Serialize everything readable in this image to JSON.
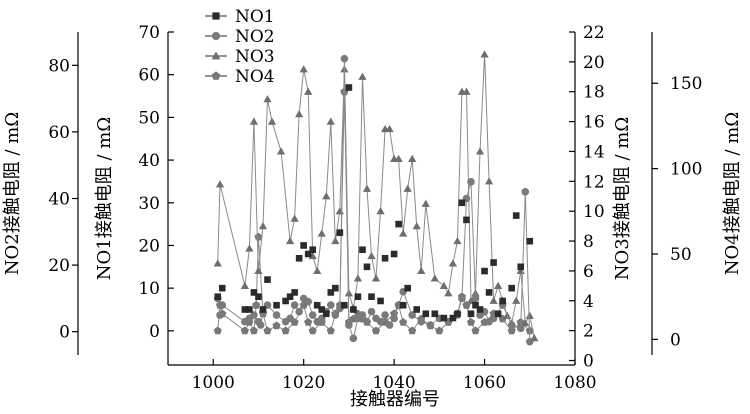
{
  "chart_data": {
    "type": "scatter",
    "xlabel": "接触器编号",
    "xlim": [
      990,
      1080
    ],
    "xticks": [
      1000,
      1020,
      1040,
      1060,
      1080
    ],
    "legend_position": "top-left",
    "grid": false,
    "axes": {
      "NO1": {
        "label": "NO1接触电阻 / mΩ",
        "lim": [
          -8,
          70
        ],
        "ticks": [
          0,
          10,
          20,
          30,
          40,
          50,
          60,
          70
        ]
      },
      "NO2": {
        "label": "NO2接触电阻 / mΩ",
        "lim": [
          -10,
          90
        ],
        "ticks": [
          0,
          20,
          40,
          60,
          80
        ]
      },
      "NO3": {
        "label": "NO3接触电阻 / mΩ",
        "lim": [
          -0.3,
          22
        ],
        "ticks": [
          0,
          2,
          4,
          6,
          8,
          10,
          12,
          14,
          16,
          18,
          20,
          22
        ]
      },
      "NO4": {
        "label": "NO4接触电阻 / mΩ",
        "lim": [
          -15,
          180
        ],
        "ticks": [
          0,
          50,
          100,
          150
        ]
      }
    },
    "series": [
      {
        "name": "NO1",
        "marker": "square",
        "axis": "NO1",
        "color": "#2b2b2b",
        "connected": false,
        "x": [
          1001,
          1002,
          1007,
          1008,
          1009,
          1010,
          1011,
          1012,
          1014,
          1016,
          1017,
          1018,
          1019,
          1020,
          1021,
          1022,
          1023,
          1024,
          1025,
          1026,
          1027,
          1028,
          1029,
          1030,
          1031,
          1032,
          1033,
          1034,
          1035,
          1037,
          1038,
          1040,
          1041,
          1042,
          1043,
          1045,
          1047,
          1049,
          1051,
          1053,
          1054,
          1055,
          1056,
          1057,
          1058,
          1059,
          1060,
          1061,
          1062,
          1063,
          1064,
          1066,
          1067,
          1068,
          1070
        ],
        "y": [
          8,
          10,
          5,
          5,
          9,
          8,
          5,
          12,
          6,
          7,
          8,
          9,
          17,
          20,
          18,
          19,
          6,
          5,
          4,
          9,
          10,
          23,
          6,
          57,
          5,
          8,
          19,
          15,
          8,
          7,
          17,
          18,
          25,
          6,
          10,
          5,
          4,
          4,
          3,
          3,
          4,
          30,
          26,
          4,
          6,
          5,
          14,
          9,
          16,
          4,
          7,
          10,
          27,
          15,
          21
        ]
      },
      {
        "name": "NO2",
        "marker": "circle",
        "axis": "NO2",
        "color": "#7a7a7a",
        "connected": true,
        "x": [
          1001,
          1001.5,
          1002,
          1007,
          1008,
          1009,
          1010,
          1010.5,
          1011,
          1012,
          1014,
          1016,
          1017,
          1018,
          1019,
          1020,
          1021,
          1022,
          1023,
          1024,
          1025,
          1026,
          1027,
          1028,
          1029,
          1030,
          1031,
          1032,
          1033,
          1034,
          1035,
          1036,
          1037,
          1038,
          1039,
          1040,
          1041,
          1042,
          1044,
          1046,
          1048,
          1050,
          1052,
          1054,
          1055,
          1056,
          1057,
          1058,
          1059,
          1060,
          1061,
          1062,
          1064,
          1066,
          1068,
          1069,
          1070
        ],
        "y": [
          10,
          5,
          8,
          3,
          4,
          5,
          3,
          2,
          6,
          8,
          5,
          3,
          4,
          8,
          6,
          10,
          9,
          5,
          3,
          4,
          6,
          8,
          5,
          7,
          82,
          2,
          -2,
          4,
          5,
          3,
          6,
          4,
          3,
          5,
          2,
          4,
          8,
          12,
          5,
          3,
          2,
          4,
          3,
          5,
          10,
          40,
          45,
          10,
          5,
          6,
          3,
          4,
          8,
          2,
          1,
          42,
          -3
        ]
      },
      {
        "name": "NO3",
        "marker": "triangle",
        "axis": "NO3",
        "color": "#6e6e6e",
        "connected": true,
        "x": [
          1001,
          1001.5,
          1007,
          1008,
          1009,
          1010,
          1011,
          1012,
          1013,
          1015,
          1017,
          1018,
          1019,
          1020,
          1021,
          1022,
          1023,
          1024,
          1025,
          1026,
          1027,
          1028,
          1029,
          1030,
          1031,
          1032,
          1033,
          1034,
          1035,
          1036,
          1037,
          1038,
          1039,
          1040,
          1041,
          1042,
          1043,
          1044,
          1045,
          1046,
          1047,
          1049,
          1051,
          1052,
          1053,
          1054,
          1055,
          1056,
          1057,
          1058,
          1059,
          1060,
          1061,
          1062,
          1063,
          1064,
          1065,
          1066,
          1067,
          1068,
          1069,
          1070,
          1071
        ],
        "y": [
          6.5,
          11.8,
          5,
          7.5,
          16,
          6,
          9,
          17.5,
          16,
          14,
          8,
          9.5,
          16.5,
          19.5,
          18,
          7,
          6,
          8.5,
          11,
          16,
          8,
          10,
          19.5,
          4.5,
          3.5,
          5.5,
          19,
          11.5,
          7,
          5.5,
          10,
          15.5,
          15.5,
          13.5,
          13.5,
          8.5,
          11.5,
          13.5,
          9,
          6,
          10.5,
          5.5,
          5,
          4.5,
          6.5,
          8,
          18,
          18,
          4,
          4.5,
          14,
          20.5,
          12,
          4,
          5,
          4,
          3,
          2.5,
          4,
          6,
          2.5,
          3,
          1.5
        ]
      },
      {
        "name": "NO4",
        "marker": "pentagon",
        "axis": "NO4",
        "color": "#777777",
        "connected": true,
        "x": [
          1001,
          1001.5,
          1002,
          1007,
          1008,
          1009,
          1009.5,
          1010,
          1011,
          1012,
          1014,
          1016,
          1018,
          1020,
          1021,
          1022,
          1024,
          1026,
          1027,
          1028,
          1029,
          1030,
          1031,
          1032,
          1033,
          1034,
          1036,
          1038,
          1040,
          1041,
          1042,
          1044,
          1046,
          1048,
          1050,
          1052,
          1054,
          1055,
          1056,
          1057,
          1058,
          1060,
          1062,
          1064,
          1066,
          1068,
          1070
        ],
        "y": [
          5,
          20,
          15,
          5,
          10,
          5,
          20,
          60,
          15,
          5,
          8,
          5,
          10,
          20,
          10,
          5,
          10,
          5,
          15,
          20,
          145,
          10,
          12,
          15,
          12,
          10,
          5,
          10,
          15,
          20,
          10,
          5,
          12,
          8,
          5,
          10,
          15,
          25,
          20,
          10,
          5,
          10,
          15,
          12,
          5,
          10,
          5
        ]
      }
    ]
  }
}
